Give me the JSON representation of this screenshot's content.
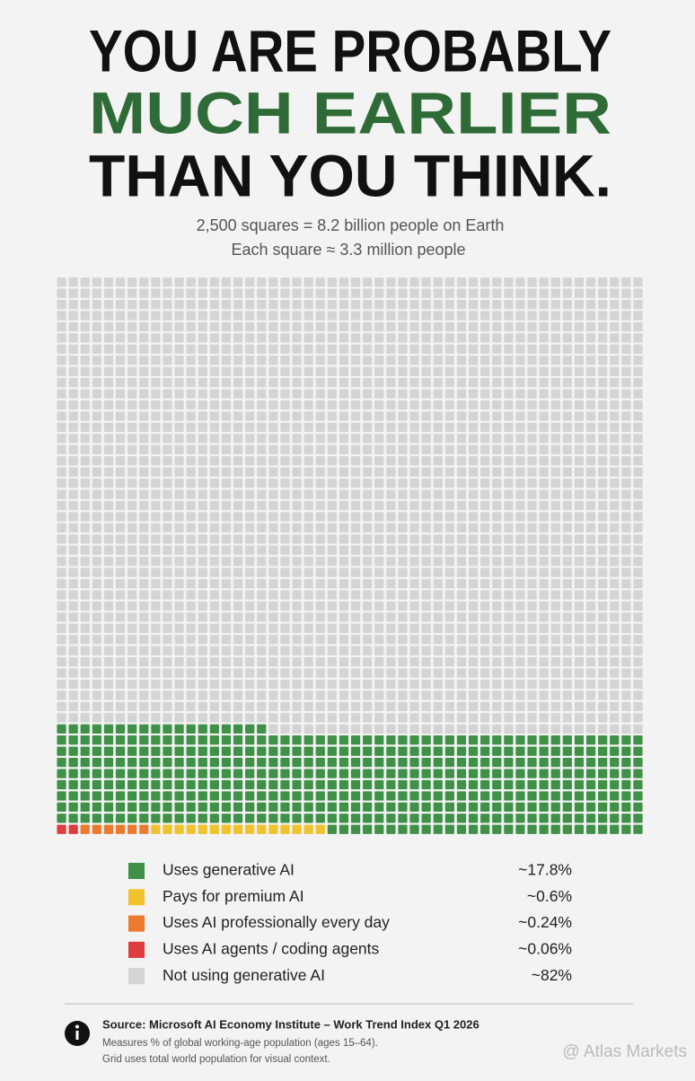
{
  "chart_data": {
    "type": "waffle",
    "title": [
      "YOU ARE PROBABLY",
      "MUCH EARLIER",
      "THAN YOU THINK."
    ],
    "title_colors": [
      "#111111",
      "#2f6b36",
      "#111111"
    ],
    "subtitle": [
      "2,500 squares = 8.2 billion people on Earth",
      "Each square ≈ 3.3 million people"
    ],
    "categories": [
      "Uses generative AI",
      "Pays for premium AI",
      "Uses AI professionally every day",
      "Uses AI agents / coding agents",
      "Not using generative AI"
    ],
    "values": [
      17.8,
      0.6,
      0.24,
      0.06,
      82
    ],
    "value_labels": [
      "~17.8%",
      "~0.6%",
      "~0.24%",
      "~0.06%",
      "~82%"
    ],
    "colors": [
      "#3f9148",
      "#f0c22e",
      "#ec7a2c",
      "#de3c3e",
      "#d4d4d4"
    ],
    "source": "Source: Microsoft AI Economy Institute – Work Trend Index Q1 2026",
    "notes": [
      "Measures % of global working-age population (ages 15–64).",
      "Grid uses total world population for visual context."
    ],
    "watermark": "@ Atlas Markets"
  }
}
